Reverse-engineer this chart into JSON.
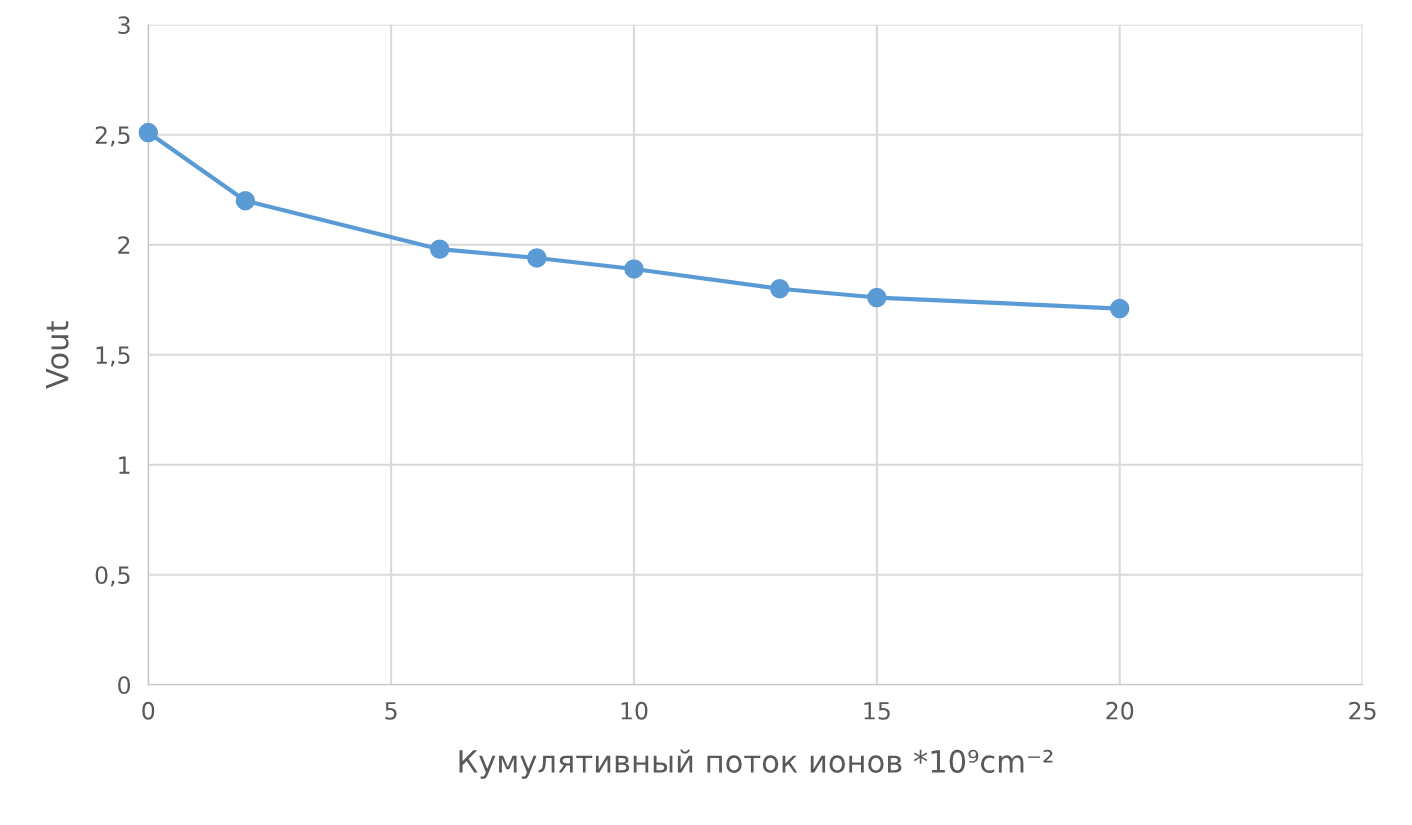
{
  "chart_data": {
    "type": "line",
    "xlabel": "Кумулятивный поток ионов *10⁹cm⁻²",
    "ylabel": "Vout",
    "x": [
      0,
      2,
      6,
      8,
      10,
      13,
      15,
      20
    ],
    "series": [
      {
        "color": "#5b9bd5",
        "values": [
          2.51,
          2.2,
          1.98,
          1.94,
          1.89,
          1.8,
          1.76,
          1.71
        ]
      }
    ],
    "xlim": [
      0,
      25
    ],
    "xticks": [
      0,
      5,
      10,
      15,
      20,
      25
    ],
    "ylim": [
      0,
      3
    ],
    "yticks": [
      0,
      {
        "value": 0.5,
        "label": "0,5"
      },
      1,
      {
        "value": 1.5,
        "label": "1,5"
      },
      2,
      {
        "value": 2.5,
        "label": "2,5"
      },
      3
    ],
    "grid": true,
    "marker": "circle",
    "line_style": "solid"
  }
}
